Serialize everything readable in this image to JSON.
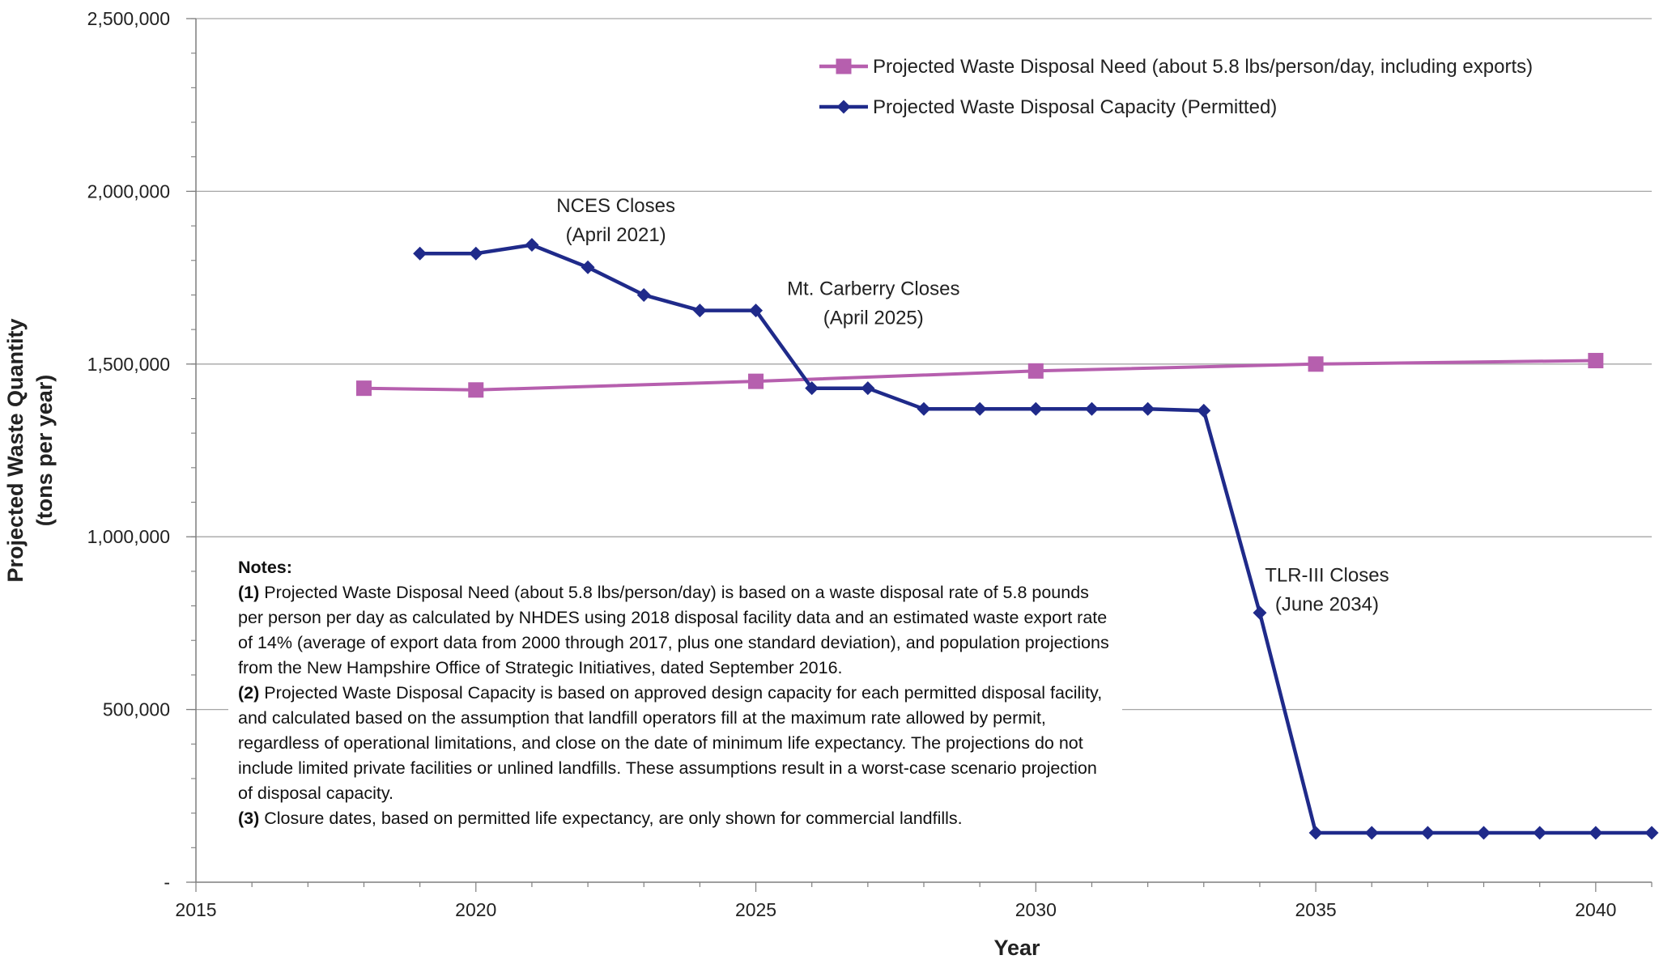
{
  "chart_data": {
    "type": "line",
    "xlabel": "Year",
    "ylabel": [
      "Projected Waste Quantity",
      "(tons per year)"
    ],
    "xlim": [
      2015,
      2041
    ],
    "ylim": [
      0,
      2500000
    ],
    "x_ticks": [
      "2015",
      "2020",
      "2025",
      "2030",
      "2035",
      "2040"
    ],
    "y_ticks": [
      "-",
      "500,000",
      "1,000,000",
      "1,500,000",
      "2,000,000",
      "2,500,000"
    ],
    "grid": "horizontal",
    "legend_position": "top-right",
    "series": [
      {
        "name": "Projected Waste Disposal Need (about 5.8 lbs/person/day, including exports)",
        "color": "#b65fae",
        "marker": "square",
        "x": [
          2018,
          2020,
          2025,
          2030,
          2035,
          2040
        ],
        "values": [
          1430000,
          1425000,
          1450000,
          1480000,
          1500000,
          1510000
        ]
      },
      {
        "name": "Projected Waste Disposal Capacity (Permitted)",
        "color": "#1f2a8a",
        "marker": "diamond",
        "x": [
          2019,
          2020,
          2021,
          2022,
          2023,
          2024,
          2025,
          2026,
          2027,
          2028,
          2029,
          2030,
          2031,
          2032,
          2033,
          2034,
          2035,
          2036,
          2037,
          2038,
          2039,
          2040,
          2041
        ],
        "values": [
          1820000,
          1820000,
          1845000,
          1780000,
          1700000,
          1655000,
          1655000,
          1430000,
          1430000,
          1370000,
          1370000,
          1370000,
          1370000,
          1370000,
          1365000,
          780000,
          143000,
          143000,
          143000,
          143000,
          143000,
          143000,
          143000
        ]
      }
    ],
    "annotations": [
      {
        "lines": [
          "NCES Closes",
          "(April 2021)"
        ],
        "x": 2022.5,
        "y": 1940000
      },
      {
        "lines": [
          "Mt. Carberry Closes",
          "(April 2025)"
        ],
        "x": 2027.1,
        "y": 1700000
      },
      {
        "lines": [
          "TLR-III Closes",
          "(June 2034)"
        ],
        "x": 2035.2,
        "y": 870000
      }
    ]
  },
  "notes": {
    "heading": "Notes:",
    "items": [
      {
        "num": "(1)",
        "text": " Projected Waste Disposal Need (about 5.8 lbs/person/day) is based on a waste disposal rate of 5.8 pounds per person per day as calculated by NHDES using 2018 disposal facility data and an estimated waste export rate of 14% (average of export data from 2000 through 2017, plus one standard deviation), and population projections from the New Hampshire Office of Strategic Initiatives, dated September 2016."
      },
      {
        "num": "(2)",
        "text": " Projected Waste Disposal Capacity is based on approved design capacity for each permitted disposal facility, and calculated based on the assumption that landfill operators fill at the maximum rate allowed by permit, regardless of operational limitations, and close on the date of minimum life expectancy. The projections do not include limited private facilities or unlined landfills. These assumptions result in a worst-case scenario projection of disposal capacity."
      },
      {
        "num": "(3)",
        "text": " Closure dates, based on permitted life expectancy, are only shown for commercial landfills."
      }
    ]
  }
}
